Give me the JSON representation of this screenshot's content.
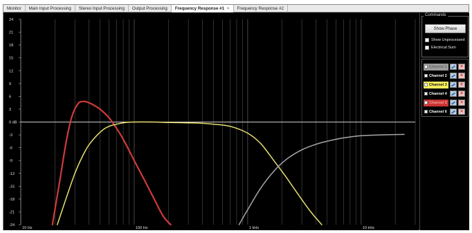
{
  "tabs": [
    {
      "label": "Monitor",
      "active": false
    },
    {
      "label": "Main Input Processing",
      "active": false
    },
    {
      "label": "Stereo Input Processing",
      "active": false
    },
    {
      "label": "Output Processing",
      "active": false
    },
    {
      "label": "Frequency Response #1",
      "active": true,
      "close": "×"
    },
    {
      "label": "Frequency Response #2",
      "active": false
    }
  ],
  "chart": {
    "y_ticks": [
      "24",
      "21",
      "18",
      "15",
      "12",
      "9",
      "6",
      "3",
      "0 dB",
      "-3",
      "-6",
      "-9",
      "-12",
      "-15",
      "-18",
      "-21",
      "-24"
    ],
    "x_labels": [
      {
        "label": "10 Hz",
        "freq": 10
      },
      {
        "label": "100 Hz",
        "freq": 100
      },
      {
        "label": "1 kHz",
        "freq": 1000
      },
      {
        "label": "10 kHz",
        "freq": 10000
      }
    ],
    "freq_range": [
      10,
      30000
    ],
    "db_range": [
      -24,
      24
    ],
    "background": "#000000",
    "grid_color": "#505050",
    "zero_line_color": "#cfcfcf"
  },
  "chart_data": {
    "type": "line",
    "x_scale": "log",
    "xlabel": "",
    "ylabel": "",
    "xlim": [
      10,
      30000
    ],
    "ylim": [
      -24,
      24
    ],
    "grid": true,
    "series": [
      {
        "color": "#d03a3a",
        "x": [
          19,
          22,
          25,
          28,
          32,
          36,
          40,
          45,
          50,
          60,
          70,
          80,
          100,
          120,
          150,
          180,
          210
        ],
        "y": [
          -24,
          -14,
          -5,
          1,
          4.3,
          4.8,
          4.5,
          3.8,
          3.0,
          1.0,
          -1.5,
          -4,
          -9,
          -13,
          -18,
          -22,
          -24
        ]
      },
      {
        "color": "#e8e070",
        "x": [
          21,
          25,
          30,
          35,
          40,
          50,
          60,
          80,
          100,
          150,
          200,
          300,
          400,
          500,
          700,
          1000,
          1300,
          1700,
          2200,
          2800,
          3600,
          4500
        ],
        "y": [
          -24,
          -18,
          -12,
          -8,
          -5.3,
          -2.4,
          -1.0,
          -0.2,
          0,
          0,
          -0.1,
          -0.2,
          -0.3,
          -0.5,
          -1.0,
          -2.6,
          -5,
          -9,
          -13,
          -17,
          -21,
          -24
        ]
      },
      {
        "color": "#a8a8a8",
        "x": [
          840,
          1000,
          1300,
          1700,
          2200,
          3000,
          4000,
          5000,
          7000,
          10000,
          15000,
          24000
        ],
        "y": [
          -24,
          -20.5,
          -15.5,
          -11.5,
          -8.7,
          -6.5,
          -5.2,
          -4.5,
          -3.7,
          -3.2,
          -3.0,
          -2.9
        ]
      }
    ]
  },
  "commands": {
    "legend": "Commands",
    "show_phase": "Show Phase",
    "show_unprocessed": "Show Unprocessed",
    "electrical_sum": "Electrical Sum"
  },
  "channels": [
    {
      "label": "Channel 1",
      "bg": "#9a9a9a",
      "fg": "#6a6a6a",
      "checked": true
    },
    {
      "label": "Channel 2",
      "bg": "#000000",
      "fg": "#ffffff",
      "checked": false
    },
    {
      "label": "Channel 3",
      "bg": "#f4ec5c",
      "fg": "#1a1a1a",
      "checked": true
    },
    {
      "label": "Channel 4",
      "bg": "#000000",
      "fg": "#ffffff",
      "checked": false
    },
    {
      "label": "Channel 5",
      "bg": "#cc3333",
      "fg": "#f0a0a0",
      "checked": true
    },
    {
      "label": "Channel 6",
      "bg": "#000000",
      "fg": "#ffffff",
      "checked": false
    }
  ]
}
